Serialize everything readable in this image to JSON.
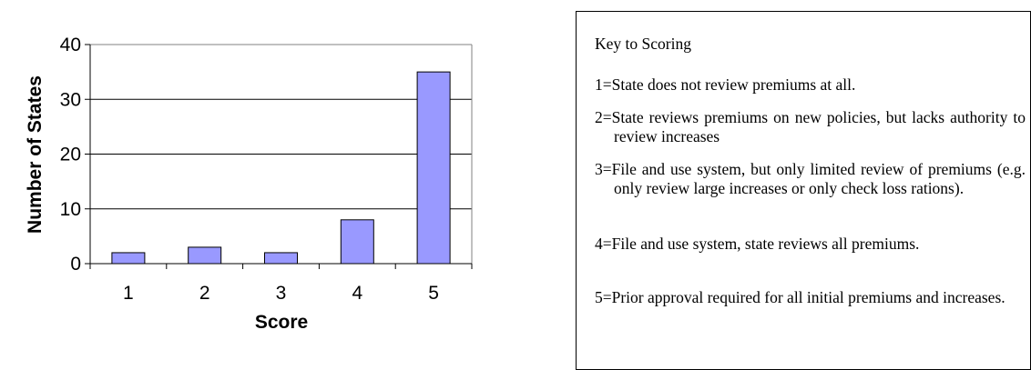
{
  "chart_data": {
    "type": "bar",
    "categories": [
      "1",
      "2",
      "3",
      "4",
      "5"
    ],
    "values": [
      2,
      3,
      2,
      8,
      35
    ],
    "xlabel": "Score",
    "ylabel": "Number of States",
    "ylim": [
      0,
      40
    ],
    "yticks": [
      0,
      10,
      20,
      30,
      40
    ],
    "grid": true,
    "bar_color": "#9999ff"
  },
  "key": {
    "title": "Key to Scoring",
    "items": [
      "1=State does not review premiums at all.",
      "2=State reviews premiums on new policies, but lacks authority to review increases",
      "3=File and use system, but only limited review of premiums (e.g. only review large increases or only check loss rations).",
      "4=File and use system, state reviews all premiums.",
      "5=Prior approval required for all initial premiums and increases."
    ]
  }
}
